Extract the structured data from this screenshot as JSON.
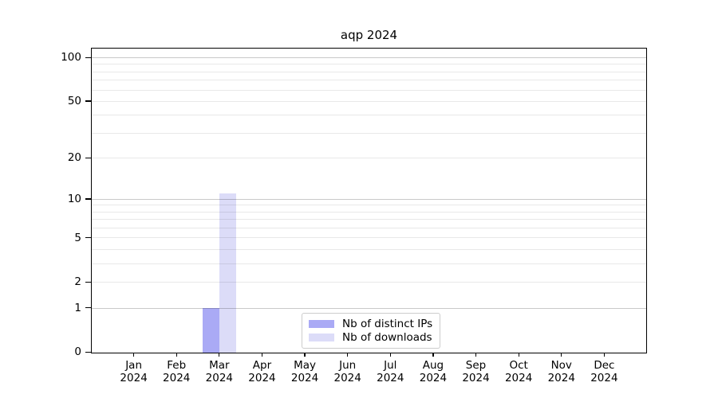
{
  "title": "aqp 2024",
  "chart_data": {
    "type": "bar",
    "title": "aqp 2024",
    "x_month_labels": [
      "Jan",
      "Feb",
      "Mar",
      "Apr",
      "May",
      "Jun",
      "Jul",
      "Aug",
      "Sep",
      "Oct",
      "Nov",
      "Dec"
    ],
    "x_year_label": "2024",
    "series": [
      {
        "name": "Nb of distinct IPs",
        "color": "#aaaaf5",
        "values": [
          0,
          0,
          1,
          0,
          0,
          0,
          0,
          0,
          0,
          0,
          0,
          0
        ]
      },
      {
        "name": "Nb of downloads",
        "color": "#dcdcf8",
        "values": [
          0,
          0,
          11,
          0,
          0,
          0,
          0,
          0,
          0,
          0,
          0,
          0
        ]
      }
    ],
    "y_axis": {
      "scale": "log1p",
      "ticks": [
        0,
        1,
        2,
        5,
        10,
        20,
        50,
        100
      ],
      "major_gridlines": [
        1,
        10,
        100
      ],
      "minor_gridlines": [
        2,
        3,
        4,
        5,
        6,
        7,
        8,
        9,
        20,
        30,
        40,
        50,
        60,
        70,
        80,
        90
      ],
      "ylim": [
        0,
        115
      ]
    },
    "legend": {
      "position": "bottom-center-inside",
      "entries": [
        {
          "label": "Nb of distinct IPs",
          "color": "#aaaaf5"
        },
        {
          "label": "Nb of downloads",
          "color": "#dcdcf8"
        }
      ]
    },
    "grid": true,
    "axis_color": "#000000",
    "background_color": "#ffffff"
  }
}
